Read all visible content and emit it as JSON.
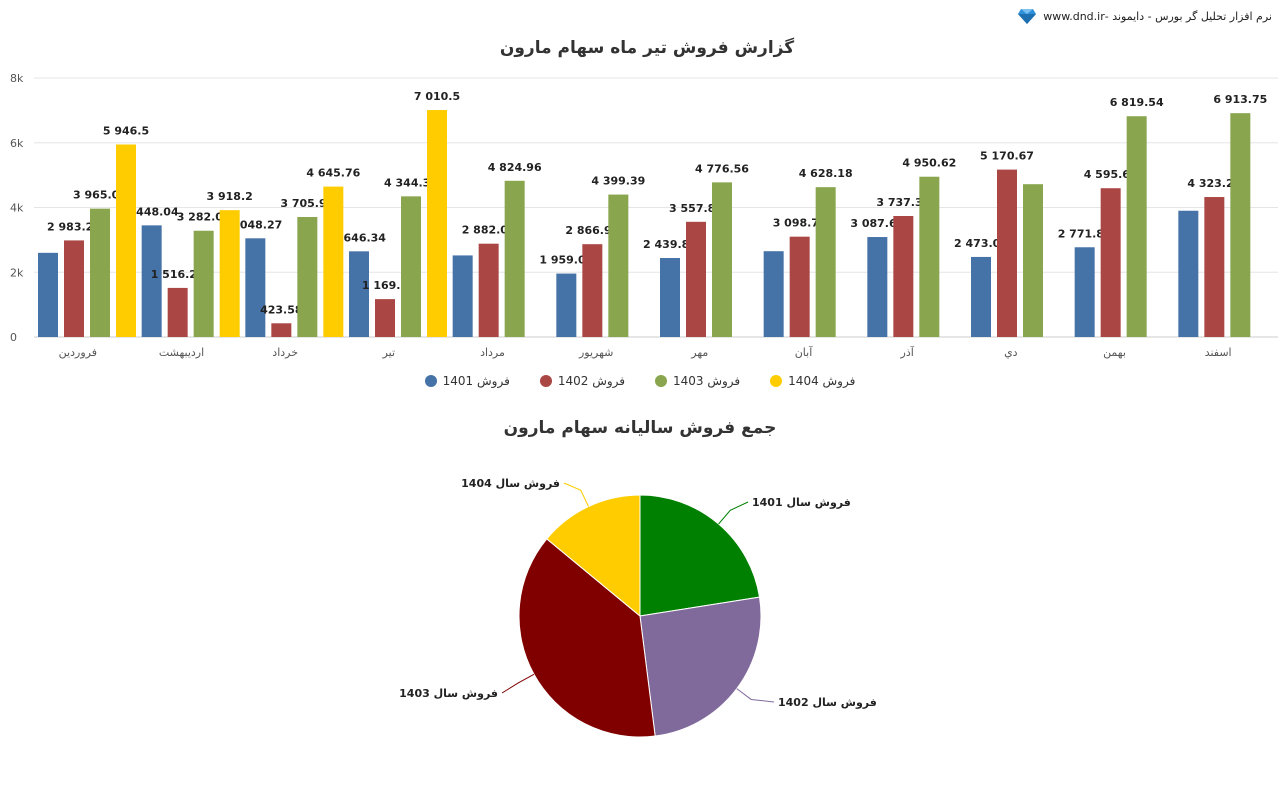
{
  "brand": {
    "text": "نرم افزار تحلیل گر بورس - دایموند -www.dnd.ir",
    "icon": "diamond-icon"
  },
  "chart_data": [
    {
      "type": "bar",
      "title": "گزارش فروش تیر ماه سهام مارون",
      "categories": [
        "فروردین",
        "اردیبهشت",
        "خرداد",
        "تیر",
        "مرداد",
        "شهریور",
        "مهر",
        "آبان",
        "آذر",
        "دي",
        "بهمن",
        "اسفند"
      ],
      "ylim": [
        0,
        8000
      ],
      "yticks": [
        {
          "value": 0,
          "label": "0"
        },
        {
          "value": 2000,
          "label": "2k"
        },
        {
          "value": 4000,
          "label": "4k"
        },
        {
          "value": 6000,
          "label": "6k"
        },
        {
          "value": 8000,
          "label": "8k"
        }
      ],
      "grid": true,
      "legend": "bottom",
      "series": [
        {
          "name": "فروش 1401",
          "color": "#4572a7",
          "values": [
            2600,
            3448.04,
            3048.27,
            2646.34,
            2520,
            1959.05,
            2439.86,
            2650,
            3087.62,
            2473.05,
            2771.84,
            3900
          ],
          "labels": [
            null,
            "3 448.04",
            "3 048.27",
            "2 646.34",
            null,
            "1 959.05",
            "2 439.86",
            null,
            "3 087.62",
            "2 473.05",
            "2 771.84",
            null
          ]
        },
        {
          "name": "فروش 1402",
          "color": "#aa4643",
          "values": [
            2983.28,
            1516.29,
            423.58,
            1169.9,
            2882.06,
            2866.95,
            3557.89,
            3098.79,
            3737.32,
            5170.67,
            4595.67,
            4323.21
          ],
          "labels": [
            "2 983.28",
            "1 516.29",
            "423.58",
            "1 169.9",
            "2 882.06",
            "2 866.95",
            "3 557.89",
            "3 098.79",
            "3 737.32",
            "5 170.67",
            "4 595.67",
            "4 323.21"
          ]
        },
        {
          "name": "فروش 1403",
          "color": "#89a54e",
          "values": [
            3965.01,
            3282.01,
            3705.92,
            4344.35,
            4824.96,
            4399.39,
            4776.56,
            4628.18,
            4950.62,
            4720,
            6819.54,
            6913.75
          ],
          "labels": [
            "3 965.01",
            "3 282.01",
            "3 705.92",
            "4 344.35",
            "4 824.96",
            "4 399.39",
            "4 776.56",
            "4 628.18",
            "4 950.62",
            null,
            "6 819.54",
            "6 913.75"
          ]
        },
        {
          "name": "فروش 1404",
          "color": "#ffcc00",
          "values": [
            5946.5,
            3918.2,
            4645.76,
            7010.5,
            null,
            null,
            null,
            null,
            null,
            null,
            null,
            null
          ],
          "labels": [
            "5 946.5",
            "3 918.2",
            "4 645.76",
            "7 010.5",
            null,
            null,
            null,
            null,
            null,
            null,
            null,
            null
          ]
        }
      ]
    },
    {
      "type": "pie",
      "title": "جمع فروش سالیانه سهام مارون",
      "slices": [
        {
          "name": "فروش سال 1401",
          "value": 22.5,
          "color": "#008000"
        },
        {
          "name": "فروش سال 1402",
          "value": 25.5,
          "color": "#806a9b"
        },
        {
          "name": "فروش سال 1403",
          "value": 38.0,
          "color": "#800000"
        },
        {
          "name": "فروش سال 1404",
          "value": 14.0,
          "color": "#ffcc00"
        }
      ]
    }
  ]
}
